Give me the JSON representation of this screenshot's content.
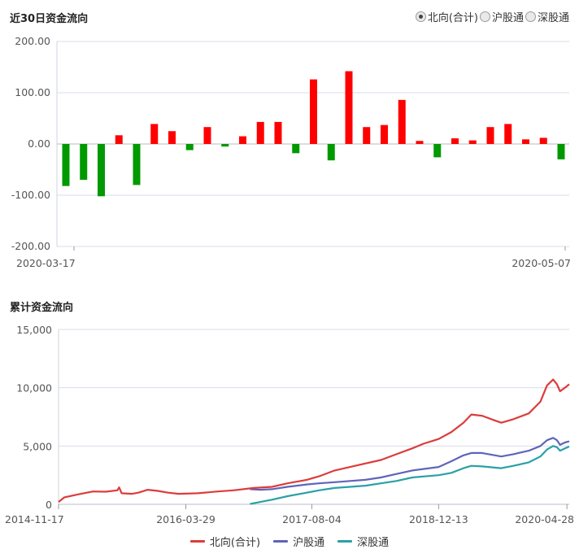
{
  "chart_data": [
    {
      "type": "bar",
      "title": "近30日资金流向",
      "ylim": [
        -200,
        200
      ],
      "yticks": [
        "200.00",
        "100.00",
        "0.00",
        "-100.00",
        "-200.00"
      ],
      "yticks_values": [
        200,
        100,
        0,
        -100,
        -200
      ],
      "x_start_label": "2020-03-17",
      "x_end_label": "2020-05-07",
      "values": [
        -82,
        -70,
        -102,
        17,
        -80,
        39,
        25,
        -12,
        33,
        -5,
        15,
        43,
        43,
        -18,
        126,
        -32,
        142,
        33,
        37,
        86,
        6,
        -26,
        11,
        7,
        33,
        39,
        9,
        12,
        -30
      ],
      "positive_color": "#ff0000",
      "negative_color": "#009900",
      "grid": true
    },
    {
      "type": "line",
      "title": "累计资金流向",
      "ylim": [
        0,
        15000
      ],
      "yticks": [
        "15,000",
        "10,000",
        "5,000",
        "0"
      ],
      "yticks_values": [
        15000,
        10000,
        5000,
        0
      ],
      "x_labels": [
        "2014-11-17",
        "2016-03-29",
        "2017-08-04",
        "2018-12-13",
        "2020-04-28"
      ],
      "x_range": [
        "2014-11-17",
        "2020-05-07"
      ],
      "grid": true,
      "legend_position": "bottom",
      "series": [
        {
          "name": "北向(合计)",
          "color": "#dd3b3b",
          "points": [
            [
              "2014-11-17",
              200
            ],
            [
              "2014-12-10",
              600
            ],
            [
              "2015-02-01",
              850
            ],
            [
              "2015-04-01",
              1100
            ],
            [
              "2015-05-20",
              1080
            ],
            [
              "2015-07-05",
              1200
            ],
            [
              "2015-07-12",
              1450
            ],
            [
              "2015-07-22",
              950
            ],
            [
              "2015-09-01",
              900
            ],
            [
              "2015-09-25",
              1000
            ],
            [
              "2015-11-01",
              1250
            ],
            [
              "2015-12-10",
              1150
            ],
            [
              "2016-01-20",
              1000
            ],
            [
              "2016-03-01",
              900
            ],
            [
              "2016-05-15",
              950
            ],
            [
              "2016-08-01",
              1100
            ],
            [
              "2016-10-01",
              1200
            ],
            [
              "2016-12-20",
              1400
            ],
            [
              "2017-03-01",
              1500
            ],
            [
              "2017-05-01",
              1800
            ],
            [
              "2017-07-15",
              2100
            ],
            [
              "2017-09-01",
              2400
            ],
            [
              "2017-11-01",
              2900
            ],
            [
              "2018-01-01",
              3200
            ],
            [
              "2018-03-01",
              3500
            ],
            [
              "2018-05-01",
              3800
            ],
            [
              "2018-07-01",
              4300
            ],
            [
              "2018-09-01",
              4800
            ],
            [
              "2018-10-15",
              5200
            ],
            [
              "2018-12-13",
              5600
            ],
            [
              "2019-02-01",
              6200
            ],
            [
              "2019-03-20",
              7000
            ],
            [
              "2019-04-20",
              7700
            ],
            [
              "2019-06-01",
              7600
            ],
            [
              "2019-07-20",
              7200
            ],
            [
              "2019-08-15",
              7000
            ],
            [
              "2019-10-01",
              7300
            ],
            [
              "2019-12-01",
              7800
            ],
            [
              "2020-01-15",
              8800
            ],
            [
              "2020-02-10",
              10200
            ],
            [
              "2020-03-05",
              10700
            ],
            [
              "2020-03-20",
              10300
            ],
            [
              "2020-04-01",
              9700
            ],
            [
              "2020-04-20",
              10000
            ],
            [
              "2020-05-07",
              10300
            ]
          ]
        },
        {
          "name": "沪股通",
          "color": "#5e65b8",
          "points": [
            [
              "2016-12-05",
              1300
            ],
            [
              "2017-01-15",
              1250
            ],
            [
              "2017-03-01",
              1300
            ],
            [
              "2017-05-01",
              1500
            ],
            [
              "2017-07-15",
              1700
            ],
            [
              "2017-09-01",
              1800
            ],
            [
              "2017-11-01",
              1900
            ],
            [
              "2018-01-01",
              2000
            ],
            [
              "2018-03-01",
              2100
            ],
            [
              "2018-05-01",
              2300
            ],
            [
              "2018-07-01",
              2600
            ],
            [
              "2018-09-01",
              2900
            ],
            [
              "2018-12-13",
              3200
            ],
            [
              "2019-02-01",
              3700
            ],
            [
              "2019-03-20",
              4200
            ],
            [
              "2019-04-20",
              4400
            ],
            [
              "2019-06-01",
              4400
            ],
            [
              "2019-08-15",
              4100
            ],
            [
              "2019-10-01",
              4300
            ],
            [
              "2019-12-01",
              4600
            ],
            [
              "2020-01-15",
              5000
            ],
            [
              "2020-02-10",
              5500
            ],
            [
              "2020-03-05",
              5700
            ],
            [
              "2020-03-20",
              5500
            ],
            [
              "2020-04-01",
              5100
            ],
            [
              "2020-04-20",
              5300
            ],
            [
              "2020-05-07",
              5400
            ]
          ]
        },
        {
          "name": "深股通",
          "color": "#2aa0a6",
          "points": [
            [
              "2016-12-05",
              30
            ],
            [
              "2017-01-15",
              200
            ],
            [
              "2017-03-01",
              400
            ],
            [
              "2017-05-01",
              700
            ],
            [
              "2017-07-15",
              1000
            ],
            [
              "2017-09-01",
              1200
            ],
            [
              "2017-11-01",
              1400
            ],
            [
              "2018-01-01",
              1500
            ],
            [
              "2018-03-01",
              1600
            ],
            [
              "2018-05-01",
              1800
            ],
            [
              "2018-07-01",
              2000
            ],
            [
              "2018-09-01",
              2300
            ],
            [
              "2018-12-13",
              2500
            ],
            [
              "2019-02-01",
              2700
            ],
            [
              "2019-03-20",
              3100
            ],
            [
              "2019-04-20",
              3300
            ],
            [
              "2019-06-01",
              3250
            ],
            [
              "2019-08-15",
              3100
            ],
            [
              "2019-10-01",
              3300
            ],
            [
              "2019-12-01",
              3600
            ],
            [
              "2020-01-15",
              4100
            ],
            [
              "2020-02-10",
              4700
            ],
            [
              "2020-03-05",
              5000
            ],
            [
              "2020-03-20",
              4900
            ],
            [
              "2020-04-01",
              4600
            ],
            [
              "2020-04-20",
              4800
            ],
            [
              "2020-05-07",
              4950
            ]
          ]
        }
      ]
    }
  ],
  "radio_options": [
    {
      "label": "北向(合计)",
      "checked": true
    },
    {
      "label": "沪股通",
      "checked": false
    },
    {
      "label": "深股通",
      "checked": false
    }
  ]
}
